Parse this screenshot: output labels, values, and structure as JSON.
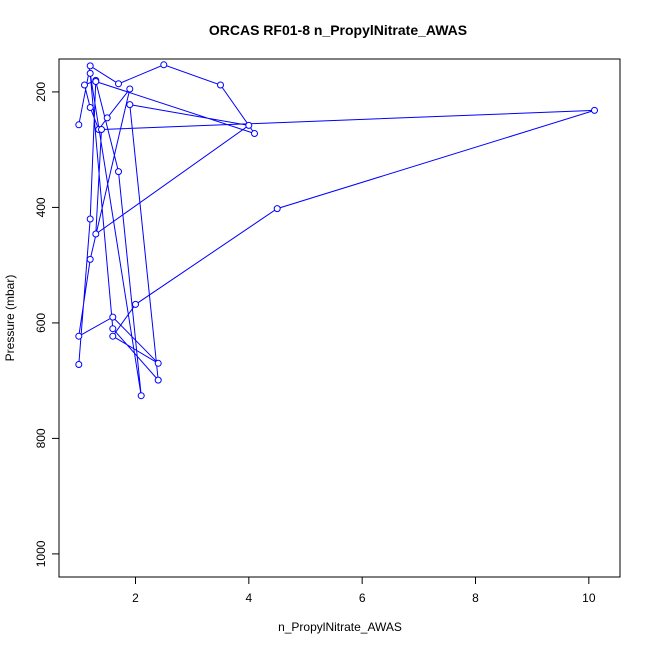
{
  "chart_data": {
    "type": "scatter",
    "title": "ORCAS RF01-8 n_PropylNitrate_AWAS",
    "xlabel": "n_PropylNitrate_AWAS",
    "ylabel": "Pressure (mbar)",
    "xlim": [
      0.65,
      10.55
    ],
    "ylim": [
      1040,
      143
    ],
    "y_reversed": true,
    "x_ticks": [
      2,
      4,
      6,
      8,
      10
    ],
    "y_ticks": [
      200,
      400,
      600,
      800,
      1000
    ],
    "grid": false,
    "color": "#0000ff",
    "marker": "open-circle",
    "lines": true,
    "series": [
      {
        "x": [
          1.0,
          1.2,
          1.3,
          1.1,
          1.2,
          1.35,
          1.5,
          1.9,
          1.2,
          1.0,
          1.6,
          2.4,
          1.6,
          2.0,
          4.5,
          10.1,
          1.4,
          1.3,
          4.0,
          1.9,
          2.4,
          1.6,
          1.2,
          2.1,
          1.7,
          1.3,
          4.1,
          3.5,
          2.5,
          1.7,
          1.2,
          1.0
        ],
        "y": [
          672,
          420,
          180,
          188,
          227,
          265,
          245,
          195,
          490,
          623,
          590,
          670,
          623,
          568,
          402,
          232,
          265,
          446,
          258,
          222,
          699,
          610,
          168,
          726,
          338,
          182,
          272,
          188,
          153,
          186,
          155,
          257
        ]
      }
    ]
  }
}
